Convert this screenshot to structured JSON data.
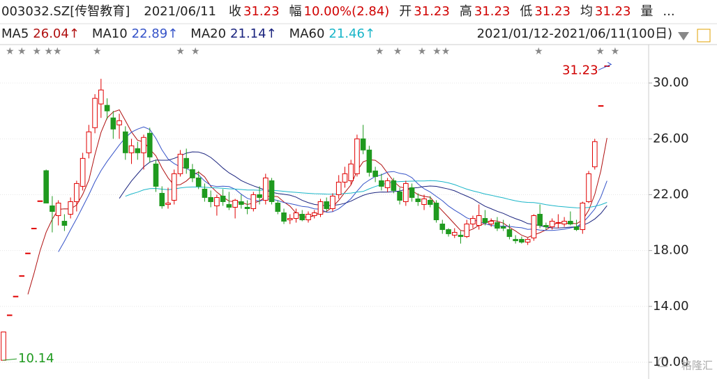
{
  "chart_data": {
    "type": "candlestick",
    "header": {
      "code": "003032.SZ[传智教育]",
      "date": "2021/06/11",
      "close_label": "收",
      "close": "31.23",
      "change_label": "幅",
      "change": "10.00%(2.84)",
      "open_label": "开",
      "open": "31.23",
      "high_label": "高",
      "high": "31.23",
      "low_label": "低",
      "low": "31.23",
      "avg_label": "均",
      "avg": "31.23",
      "volume_label": "量",
      "more": "..."
    },
    "ma": [
      {
        "name": "MA5",
        "period": 5,
        "value": "26.04↑",
        "color": "#b01010"
      },
      {
        "name": "MA10",
        "period": 10,
        "value": "22.89↑",
        "color": "#3553c8"
      },
      {
        "name": "MA20",
        "period": 20,
        "value": "21.14↑",
        "color": "#1a237e"
      },
      {
        "name": "MA60",
        "period": 60,
        "value": "21.46↑",
        "color": "#19b5c8"
      }
    ],
    "range": "2021/01/12-2021/06/11(100日)",
    "annotations": [
      {
        "text": "31.23",
        "value": 31.23
      },
      {
        "text": "10.14",
        "value": 10.14
      }
    ],
    "watermark": "格隆汇",
    "ylim": [
      8.8,
      32.75
    ],
    "yticks": [
      {
        "value": 10,
        "label": "10.00"
      },
      {
        "value": 14,
        "label": "14.00"
      },
      {
        "value": 18,
        "label": "18.00"
      },
      {
        "value": 22,
        "label": "22.00"
      },
      {
        "value": 26,
        "label": "26.00"
      },
      {
        "value": 30,
        "label": "30.00"
      }
    ],
    "up_color": "#e00000",
    "down_color": "#1f9a1f",
    "ohlc": [
      [
        10.14,
        12.17,
        10.14,
        12.17
      ],
      [
        13.39,
        13.39,
        13.39,
        13.39
      ],
      [
        14.73,
        14.73,
        14.73,
        14.73
      ],
      [
        16.2,
        16.2,
        16.2,
        16.2
      ],
      [
        17.82,
        17.82,
        17.82,
        17.82
      ],
      [
        19.6,
        19.6,
        19.6,
        19.6
      ],
      [
        21.56,
        21.56,
        21.56,
        21.56
      ],
      [
        23.72,
        23.8,
        21.4,
        21.4
      ],
      [
        21.2,
        21.9,
        19.3,
        20.8
      ],
      [
        20.5,
        21.6,
        19.8,
        21.4
      ],
      [
        20.1,
        20.6,
        19.4,
        19.8
      ],
      [
        20.6,
        21.8,
        20.3,
        21.5
      ],
      [
        21.5,
        23.0,
        20.8,
        22.8
      ],
      [
        22.6,
        25.0,
        22.3,
        24.6
      ],
      [
        25.0,
        27.0,
        24.6,
        26.5
      ],
      [
        26.8,
        29.2,
        26.4,
        28.9
      ],
      [
        28.5,
        30.3,
        27.5,
        29.5
      ],
      [
        28.4,
        28.9,
        27.4,
        28.0
      ],
      [
        27.5,
        28.0,
        26.0,
        26.7
      ],
      [
        27.0,
        27.8,
        26.0,
        27.3
      ],
      [
        26.5,
        26.9,
        24.5,
        25.0
      ],
      [
        25.0,
        26.0,
        24.2,
        25.5
      ],
      [
        25.3,
        25.8,
        24.5,
        25.0
      ],
      [
        25.0,
        26.3,
        23.8,
        26.1
      ],
      [
        26.4,
        26.8,
        24.3,
        24.7
      ],
      [
        24.2,
        24.5,
        22.2,
        22.6
      ],
      [
        22.1,
        22.6,
        21.0,
        21.2
      ],
      [
        21.3,
        22.5,
        21.0,
        21.4
      ],
      [
        21.6,
        23.8,
        21.3,
        23.5
      ],
      [
        23.5,
        25.2,
        23.3,
        24.9
      ],
      [
        24.6,
        25.3,
        23.5,
        23.9
      ],
      [
        23.8,
        24.2,
        22.9,
        23.2
      ],
      [
        23.2,
        23.7,
        22.4,
        22.6
      ],
      [
        22.4,
        22.8,
        21.5,
        21.8
      ],
      [
        21.8,
        22.3,
        21.1,
        21.5
      ],
      [
        21.2,
        22.0,
        20.5,
        21.8
      ],
      [
        21.9,
        22.4,
        21.2,
        21.5
      ],
      [
        21.3,
        22.2,
        20.9,
        21.1
      ],
      [
        21.1,
        21.7,
        20.3,
        21.6
      ],
      [
        21.5,
        22.0,
        21.0,
        21.3
      ],
      [
        21.1,
        21.6,
        20.6,
        21.0
      ],
      [
        21.0,
        22.2,
        20.8,
        22.0
      ],
      [
        22.0,
        22.6,
        21.3,
        21.8
      ],
      [
        21.6,
        23.5,
        21.3,
        23.2
      ],
      [
        23.0,
        23.2,
        21.3,
        21.5
      ],
      [
        21.4,
        21.6,
        20.6,
        20.8
      ],
      [
        20.7,
        21.0,
        19.9,
        20.1
      ],
      [
        20.2,
        20.6,
        19.9,
        20.3
      ],
      [
        20.3,
        21.0,
        20.0,
        20.7
      ],
      [
        20.6,
        20.9,
        20.1,
        20.2
      ],
      [
        20.2,
        20.8,
        20.0,
        20.6
      ],
      [
        20.5,
        20.9,
        20.3,
        20.7
      ],
      [
        20.6,
        21.7,
        20.4,
        21.5
      ],
      [
        21.5,
        21.8,
        20.8,
        21.0
      ],
      [
        21.0,
        22.1,
        20.8,
        21.9
      ],
      [
        22.0,
        23.4,
        21.7,
        22.9
      ],
      [
        22.9,
        24.0,
        22.5,
        23.5
      ],
      [
        23.0,
        24.5,
        22.7,
        24.2
      ],
      [
        23.5,
        26.3,
        23.3,
        26.0
      ],
      [
        26.0,
        27.0,
        24.9,
        25.2
      ],
      [
        25.2,
        25.5,
        23.3,
        23.6
      ],
      [
        23.7,
        24.0,
        22.9,
        23.3
      ],
      [
        23.0,
        23.5,
        22.3,
        22.6
      ],
      [
        22.5,
        23.2,
        22.2,
        23.0
      ],
      [
        23.0,
        23.2,
        22.1,
        22.3
      ],
      [
        22.2,
        22.5,
        21.3,
        21.6
      ],
      [
        21.5,
        23.0,
        21.2,
        22.8
      ],
      [
        22.5,
        22.8,
        21.5,
        21.8
      ],
      [
        21.7,
        22.1,
        21.2,
        21.5
      ],
      [
        21.3,
        22.0,
        20.9,
        21.7
      ],
      [
        21.6,
        21.9,
        21.1,
        21.3
      ],
      [
        21.4,
        21.6,
        20.0,
        20.2
      ],
      [
        19.9,
        20.2,
        19.2,
        19.5
      ],
      [
        19.5,
        19.6,
        19.0,
        19.2
      ],
      [
        19.1,
        19.6,
        18.9,
        19.3
      ],
      [
        19.1,
        19.4,
        18.5,
        19.0
      ],
      [
        19.0,
        20.2,
        18.9,
        19.9
      ],
      [
        19.9,
        20.5,
        19.6,
        20.3
      ],
      [
        19.8,
        21.3,
        19.5,
        20.5
      ],
      [
        20.3,
        20.9,
        19.8,
        20.0
      ],
      [
        19.9,
        20.3,
        19.7,
        20.1
      ],
      [
        20.0,
        20.4,
        19.4,
        19.6
      ],
      [
        19.7,
        20.2,
        19.4,
        19.6
      ],
      [
        19.5,
        19.9,
        18.8,
        19.0
      ],
      [
        18.8,
        19.1,
        18.5,
        18.7
      ],
      [
        18.8,
        19.0,
        18.5,
        18.6
      ],
      [
        18.6,
        18.9,
        18.4,
        18.8
      ],
      [
        18.9,
        20.6,
        18.7,
        20.5
      ],
      [
        20.6,
        21.3,
        19.6,
        19.8
      ],
      [
        19.8,
        20.0,
        19.5,
        19.7
      ],
      [
        19.7,
        20.3,
        19.5,
        20.1
      ],
      [
        20.0,
        20.6,
        19.6,
        20.0
      ],
      [
        19.9,
        20.4,
        19.7,
        20.1
      ],
      [
        20.1,
        20.8,
        19.8,
        19.9
      ],
      [
        19.7,
        20.2,
        19.4,
        19.5
      ],
      [
        19.5,
        21.5,
        19.2,
        21.4
      ],
      [
        21.5,
        23.7,
        21.4,
        23.5
      ],
      [
        24.0,
        26.0,
        23.8,
        25.8
      ],
      [
        28.38,
        28.38,
        28.38,
        28.38
      ],
      [
        31.23,
        31.23,
        31.23,
        31.23
      ]
    ]
  }
}
